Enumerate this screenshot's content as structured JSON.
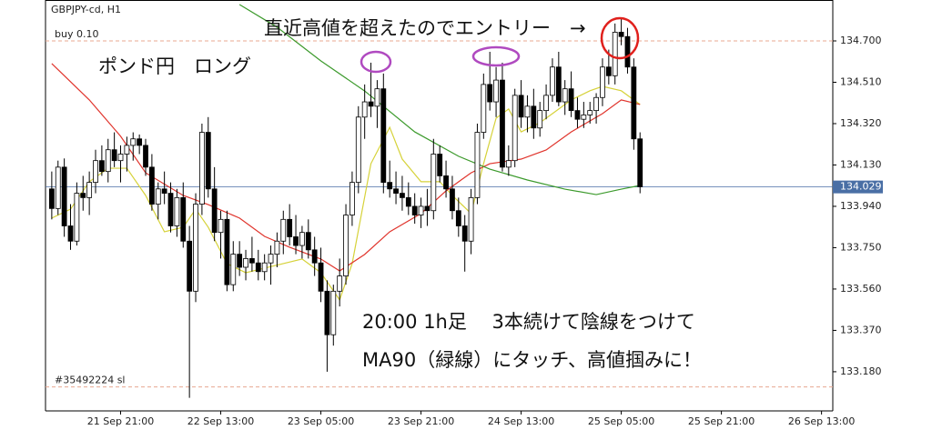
{
  "chart_data": {
    "type": "candlestick",
    "title": "GBPJPY-cd, H1",
    "ylim": [
      133.0,
      134.888
    ],
    "yticks": [
      {
        "value": 134.7,
        "label": "134.700"
      },
      {
        "value": 134.51,
        "label": "134.510"
      },
      {
        "value": 134.32,
        "label": "134.320"
      },
      {
        "value": 134.13,
        "label": "134.130"
      },
      {
        "value": 133.94,
        "label": "133.940"
      },
      {
        "value": 133.75,
        "label": "133.750"
      },
      {
        "value": 133.56,
        "label": "133.560"
      },
      {
        "value": 133.37,
        "label": "133.370"
      },
      {
        "value": 133.18,
        "label": "133.180"
      }
    ],
    "xlim": [
      -1,
      124.8
    ],
    "xticks": [
      {
        "value": 11,
        "label": "21 Sep 21:00"
      },
      {
        "value": 27,
        "label": "22 Sep 13:00"
      },
      {
        "value": 43,
        "label": "23 Sep 05:00"
      },
      {
        "value": 59,
        "label": "23 Sep 21:00"
      },
      {
        "value": 75,
        "label": "24 Sep 13:00"
      },
      {
        "value": 91,
        "label": "25 Sep 05:00"
      },
      {
        "value": 107,
        "label": "25 Sep 21:00"
      },
      {
        "value": 123,
        "label": "26 Sep 13:00"
      }
    ],
    "grid": false,
    "up_color": "#ffffff",
    "down_color": "#000000",
    "candles": [
      [
        134.02,
        134.1,
        133.88,
        133.93
      ],
      [
        133.93,
        134.15,
        133.9,
        134.12
      ],
      [
        134.12,
        134.16,
        133.8,
        133.85
      ],
      [
        133.85,
        133.95,
        133.74,
        133.78
      ],
      [
        133.78,
        134.05,
        133.76,
        134.0
      ],
      [
        134.0,
        134.08,
        133.92,
        133.98
      ],
      [
        133.98,
        134.1,
        133.9,
        134.05
      ],
      [
        134.05,
        134.2,
        134.0,
        134.15
      ],
      [
        134.15,
        134.22,
        134.08,
        134.1
      ],
      [
        134.1,
        134.25,
        134.05,
        134.2
      ],
      [
        134.2,
        134.28,
        134.12,
        134.15
      ],
      [
        134.15,
        134.22,
        134.05,
        134.18
      ],
      [
        134.18,
        134.26,
        134.1,
        134.22
      ],
      [
        134.22,
        134.28,
        134.15,
        134.25
      ],
      [
        134.25,
        134.27,
        134.18,
        134.22
      ],
      [
        134.22,
        134.25,
        134.08,
        134.12
      ],
      [
        134.12,
        134.18,
        133.92,
        133.95
      ],
      [
        133.95,
        134.05,
        133.88,
        134.02
      ],
      [
        134.02,
        134.1,
        133.95,
        134.0
      ],
      [
        134.0,
        134.05,
        133.82,
        133.85
      ],
      [
        133.85,
        134.02,
        133.8,
        133.98
      ],
      [
        133.98,
        134.05,
        133.75,
        133.78
      ],
      [
        133.78,
        133.85,
        133.06,
        133.55
      ],
      [
        133.55,
        134.0,
        133.5,
        133.95
      ],
      [
        133.95,
        134.32,
        133.9,
        134.28
      ],
      [
        134.28,
        134.35,
        133.98,
        134.02
      ],
      [
        134.02,
        134.12,
        133.78,
        133.82
      ],
      [
        133.82,
        133.92,
        133.7,
        133.88
      ],
      [
        133.88,
        133.92,
        133.55,
        133.58
      ],
      [
        133.58,
        133.78,
        133.55,
        133.72
      ],
      [
        133.72,
        133.78,
        133.62,
        133.66
      ],
      [
        133.66,
        133.74,
        133.6,
        133.7
      ],
      [
        133.7,
        133.8,
        133.64,
        133.68
      ],
      [
        133.68,
        133.74,
        133.6,
        133.64
      ],
      [
        133.64,
        133.72,
        133.6,
        133.68
      ],
      [
        133.68,
        133.76,
        133.58,
        133.72
      ],
      [
        133.72,
        133.82,
        133.66,
        133.78
      ],
      [
        133.78,
        133.92,
        133.72,
        133.88
      ],
      [
        133.88,
        133.95,
        133.76,
        133.8
      ],
      [
        133.8,
        133.9,
        133.72,
        133.76
      ],
      [
        133.76,
        133.85,
        133.7,
        133.82
      ],
      [
        133.82,
        133.88,
        133.7,
        133.74
      ],
      [
        133.74,
        133.8,
        133.62,
        133.68
      ],
      [
        133.68,
        133.75,
        133.5,
        133.55
      ],
      [
        133.55,
        133.6,
        133.18,
        133.35
      ],
      [
        133.35,
        133.58,
        133.3,
        133.55
      ],
      [
        133.55,
        133.7,
        133.48,
        133.62
      ],
      [
        133.62,
        133.95,
        133.58,
        133.9
      ],
      [
        133.9,
        134.1,
        133.85,
        134.05
      ],
      [
        134.05,
        134.4,
        134.0,
        134.35
      ],
      [
        134.35,
        134.5,
        134.25,
        134.42
      ],
      [
        134.42,
        134.6,
        134.35,
        134.4
      ],
      [
        134.4,
        134.52,
        134.3,
        134.48
      ],
      [
        134.48,
        134.55,
        134.0,
        134.05
      ],
      [
        134.05,
        134.15,
        133.98,
        134.02
      ],
      [
        134.02,
        134.1,
        133.95,
        134.0
      ],
      [
        134.0,
        134.08,
        133.92,
        133.98
      ],
      [
        133.98,
        134.05,
        133.9,
        133.94
      ],
      [
        133.94,
        134.0,
        133.86,
        133.9
      ],
      [
        133.9,
        133.98,
        133.84,
        133.94
      ],
      [
        133.94,
        134.02,
        133.85,
        133.92
      ],
      [
        133.92,
        134.25,
        133.88,
        134.18
      ],
      [
        134.18,
        134.22,
        134.05,
        134.08
      ],
      [
        134.08,
        134.15,
        133.98,
        134.02
      ],
      [
        134.02,
        134.08,
        133.88,
        133.92
      ],
      [
        133.92,
        133.98,
        133.8,
        133.85
      ],
      [
        133.85,
        133.9,
        133.64,
        133.78
      ],
      [
        133.78,
        134.02,
        133.72,
        133.98
      ],
      [
        133.98,
        134.32,
        133.95,
        134.28
      ],
      [
        134.28,
        134.55,
        134.25,
        134.5
      ],
      [
        134.5,
        134.65,
        134.38,
        134.42
      ],
      [
        134.42,
        134.58,
        134.35,
        134.52
      ],
      [
        134.52,
        134.6,
        134.1,
        134.12
      ],
      [
        134.12,
        134.22,
        134.08,
        134.15
      ],
      [
        134.15,
        134.48,
        134.12,
        134.45
      ],
      [
        134.45,
        134.52,
        134.3,
        134.35
      ],
      [
        134.35,
        134.45,
        134.28,
        134.4
      ],
      [
        134.4,
        134.48,
        134.25,
        134.3
      ],
      [
        134.3,
        134.42,
        134.26,
        134.38
      ],
      [
        134.38,
        134.5,
        134.34,
        134.45
      ],
      [
        134.45,
        134.62,
        134.42,
        134.58
      ],
      [
        134.58,
        134.65,
        134.4,
        134.42
      ],
      [
        134.42,
        134.52,
        134.36,
        134.48
      ],
      [
        134.48,
        134.56,
        134.35,
        134.38
      ],
      [
        134.38,
        134.44,
        134.3,
        134.34
      ],
      [
        134.34,
        134.42,
        134.3,
        134.36
      ],
      [
        134.36,
        134.42,
        134.32,
        134.38
      ],
      [
        134.38,
        134.46,
        134.32,
        134.44
      ],
      [
        134.44,
        134.62,
        134.4,
        134.58
      ],
      [
        134.58,
        134.66,
        134.5,
        134.54
      ],
      [
        134.54,
        134.78,
        134.5,
        134.74
      ],
      [
        134.74,
        134.8,
        134.68,
        134.72
      ],
      [
        134.72,
        134.76,
        134.55,
        134.58
      ],
      [
        134.58,
        134.62,
        134.2,
        134.25
      ],
      [
        134.25,
        134.28,
        134.0,
        134.03
      ]
    ],
    "lines": [
      {
        "color": "#d6d23a",
        "x": [
          0,
          3,
          6,
          9,
          12,
          15,
          18,
          21,
          23,
          25,
          28,
          31,
          34,
          37,
          40,
          43,
          46,
          48,
          51,
          54,
          56,
          59,
          62,
          64,
          67,
          69,
          71,
          73,
          75,
          78,
          80,
          83,
          86,
          88,
          91,
          94
        ],
        "values": [
          133.886,
          133.927,
          134.053,
          134.115,
          134.115,
          133.99,
          133.823,
          133.844,
          133.927,
          133.844,
          133.677,
          133.635,
          133.656,
          133.677,
          133.698,
          133.635,
          133.51,
          133.677,
          134.136,
          134.303,
          134.157,
          134.053,
          134.053,
          133.99,
          133.907,
          134.136,
          134.345,
          134.387,
          134.282,
          134.324,
          134.366,
          134.429,
          134.471,
          134.491,
          134.471,
          134.408
        ]
      },
      {
        "color": "#e0342c",
        "x": [
          0,
          6,
          11,
          15,
          21,
          25,
          30,
          34,
          38,
          43,
          46,
          50,
          54,
          59,
          63,
          67,
          70,
          75,
          79,
          83,
          88,
          91,
          94
        ],
        "values": [
          134.596,
          134.429,
          134.262,
          134.094,
          133.99,
          133.948,
          133.886,
          133.802,
          133.752,
          133.698,
          133.643,
          133.719,
          133.823,
          133.907,
          134.011,
          134.094,
          134.136,
          134.157,
          134.199,
          134.282,
          134.366,
          134.429,
          134.408
        ]
      },
      {
        "color": "#3c9a2c",
        "x": [
          30,
          36,
          43,
          50,
          58,
          65,
          70,
          76,
          82,
          87,
          91,
          94
        ],
        "values": [
          134.867,
          134.763,
          134.608,
          134.47,
          134.282,
          134.17,
          134.111,
          134.061,
          134.019,
          133.994,
          134.019,
          134.036
        ]
      }
    ],
    "levels": [
      {
        "label": "buy 0.10",
        "value": 134.7,
        "color": "#e8a890"
      },
      {
        "label": "#35492224 sl",
        "value": 133.11,
        "color": "#e8a890"
      }
    ],
    "current_price": 134.029,
    "current_color": "#4a6fa5",
    "annotations": [
      "直近高値を超えたのでエントリー　→",
      "ポンド円　ロング",
      "20:00 1h足　 3本続けて陰線をつけて",
      "MA90（緑線）にタッチ、高値掴みに！"
    ]
  }
}
